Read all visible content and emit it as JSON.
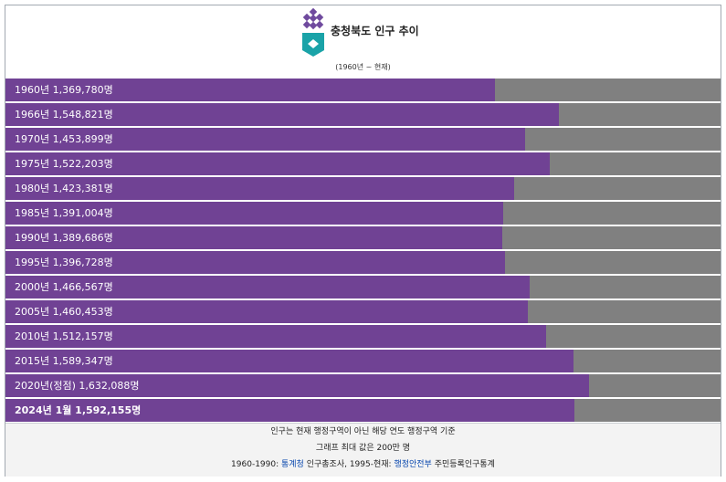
{
  "header": {
    "title": "충청북도 인구 추이",
    "subtitle": "(1960년 ~ 현재)"
  },
  "colors": {
    "bar": "#704294",
    "track": "#808080",
    "emblem_purple": "#6f4a9e",
    "emblem_teal": "#1aa3a8"
  },
  "chart_data": {
    "type": "bar",
    "orientation": "horizontal",
    "max": 2000000,
    "rows": [
      {
        "label": "1960년 1,369,780명",
        "value": 1369780
      },
      {
        "label": "1966년 1,548,821명",
        "value": 1548821
      },
      {
        "label": "1970년 1,453,899명",
        "value": 1453899
      },
      {
        "label": "1975년 1,522,203명",
        "value": 1522203
      },
      {
        "label": "1980년 1,423,381명",
        "value": 1423381
      },
      {
        "label": "1985년 1,391,004명",
        "value": 1391004
      },
      {
        "label": "1990년 1,389,686명",
        "value": 1389686
      },
      {
        "label": "1995년 1,396,728명",
        "value": 1396728
      },
      {
        "label": "2000년 1,466,567명",
        "value": 1466567
      },
      {
        "label": "2005년 1,460,453명",
        "value": 1460453
      },
      {
        "label": "2010년 1,512,157명",
        "value": 1512157
      },
      {
        "label": "2015년 1,589,347명",
        "value": 1589347
      },
      {
        "label": "2020년(정점) 1,632,088명",
        "value": 1632088
      },
      {
        "label": "2024년 1월 1,592,155명",
        "value": 1592155,
        "bold": true
      }
    ]
  },
  "footer": {
    "line1": "인구는 현재 행정구역이 아닌 해당 연도 행정구역 기준",
    "line2": "그래프 최대 값은 200만 명",
    "line3_a": "1960-1990: ",
    "line3_link1": "통계청",
    "line3_b": " 인구총조사, 1995-현재: ",
    "line3_link2": "행정안전부",
    "line3_c": " 주민등록인구통계"
  }
}
